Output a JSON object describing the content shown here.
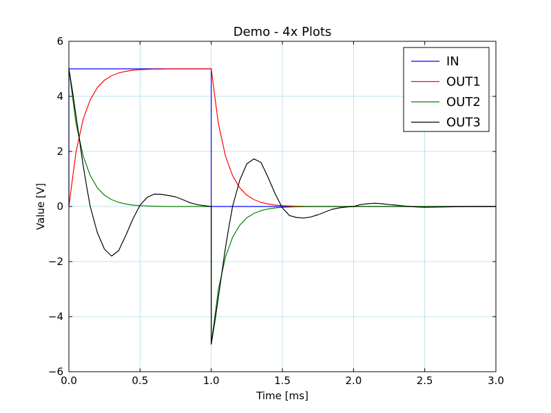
{
  "chart_data": {
    "type": "line",
    "title": "Demo - 4x Plots",
    "xlabel": "Time  [ms]",
    "ylabel": "Value [V]",
    "xlim": [
      0,
      3
    ],
    "ylim": [
      -6,
      6
    ],
    "xticks": [
      0,
      0.5,
      1,
      1.5,
      2,
      2.5,
      3
    ],
    "xtick_labels": [
      "0.0",
      "0.5",
      "1.0",
      "1.5",
      "2.0",
      "2.5",
      "3.0"
    ],
    "yticks": [
      -6,
      -4,
      -2,
      0,
      2,
      4,
      6
    ],
    "ytick_labels": [
      "−6",
      "−4",
      "−2",
      "0",
      "2",
      "4",
      "6"
    ],
    "grid": true,
    "legend_position": "top-right",
    "series": [
      {
        "name": "IN",
        "color": "#0000ff",
        "x": [
          0,
          0,
          1,
          1,
          3
        ],
        "y": [
          0,
          5,
          5,
          0,
          0
        ]
      },
      {
        "name": "OUT1",
        "color": "#ff0000",
        "x": [
          0,
          0.05,
          0.1,
          0.15,
          0.2,
          0.25,
          0.3,
          0.35,
          0.4,
          0.45,
          0.5,
          0.55,
          0.6,
          0.65,
          0.7,
          0.75,
          0.8,
          0.85,
          0.9,
          0.95,
          1.0,
          1.05,
          1.1,
          1.15,
          1.2,
          1.25,
          1.3,
          1.35,
          1.4,
          1.45,
          1.5,
          1.6,
          1.7,
          1.8,
          1.9,
          2.0,
          2.2,
          2.4,
          2.6,
          2.8,
          3.0
        ],
        "y": [
          0,
          1.98,
          3.16,
          3.88,
          4.32,
          4.59,
          4.75,
          4.85,
          4.91,
          4.95,
          4.97,
          4.98,
          4.99,
          4.99,
          5.0,
          5.0,
          5.0,
          5.0,
          5.0,
          5.0,
          5.0,
          3.02,
          1.84,
          1.12,
          0.68,
          0.41,
          0.25,
          0.15,
          0.09,
          0.05,
          0.03,
          0.01,
          0.0,
          0.0,
          0.0,
          0.0,
          0.0,
          0.0,
          0.0,
          0.0,
          0.0
        ]
      },
      {
        "name": "OUT2",
        "color": "#008000",
        "x": [
          0,
          0.05,
          0.1,
          0.15,
          0.2,
          0.25,
          0.3,
          0.35,
          0.4,
          0.45,
          0.5,
          0.55,
          0.6,
          0.7,
          0.8,
          0.9,
          1.0,
          1.0,
          1.05,
          1.1,
          1.15,
          1.2,
          1.25,
          1.3,
          1.35,
          1.4,
          1.45,
          1.5,
          1.55,
          1.6,
          1.7,
          1.8,
          1.9,
          2.0,
          2.2,
          2.4,
          2.6,
          2.8,
          3.0
        ],
        "y": [
          5.0,
          3.02,
          1.84,
          1.12,
          0.68,
          0.41,
          0.25,
          0.15,
          0.09,
          0.05,
          0.03,
          0.02,
          0.01,
          0.0,
          0.0,
          0.0,
          0.0,
          -5.0,
          -3.02,
          -1.84,
          -1.12,
          -0.68,
          -0.41,
          -0.25,
          -0.15,
          -0.09,
          -0.05,
          -0.03,
          -0.02,
          -0.01,
          0.0,
          0.0,
          0.0,
          0.0,
          0.0,
          0.0,
          0.0,
          0.0,
          0.0
        ]
      },
      {
        "name": "OUT3",
        "color": "#000000",
        "x": [
          0,
          0.025,
          0.05,
          0.075,
          0.1,
          0.125,
          0.15,
          0.2,
          0.25,
          0.3,
          0.35,
          0.4,
          0.45,
          0.5,
          0.55,
          0.6,
          0.65,
          0.7,
          0.75,
          0.8,
          0.85,
          0.9,
          0.95,
          1.0,
          1.0,
          1.025,
          1.05,
          1.075,
          1.1,
          1.125,
          1.15,
          1.2,
          1.25,
          1.3,
          1.35,
          1.4,
          1.45,
          1.5,
          1.55,
          1.6,
          1.65,
          1.7,
          1.75,
          1.8,
          1.85,
          1.9,
          1.95,
          2.0,
          2.05,
          2.1,
          2.15,
          2.2,
          2.25,
          2.3,
          2.35,
          2.4,
          2.45,
          2.5,
          2.6,
          2.7,
          2.8,
          2.9,
          3.0
        ],
        "y": [
          5.0,
          4.2,
          3.3,
          2.4,
          1.5,
          0.72,
          0.0,
          -0.95,
          -1.55,
          -1.8,
          -1.6,
          -1.05,
          -0.45,
          0.05,
          0.33,
          0.45,
          0.44,
          0.4,
          0.35,
          0.25,
          0.14,
          0.07,
          0.03,
          0.0,
          -5.0,
          -4.2,
          -3.3,
          -2.4,
          -1.5,
          -0.72,
          0.0,
          0.95,
          1.55,
          1.73,
          1.6,
          1.05,
          0.45,
          -0.05,
          -0.33,
          -0.4,
          -0.42,
          -0.38,
          -0.3,
          -0.2,
          -0.1,
          -0.05,
          -0.02,
          0.0,
          0.07,
          0.1,
          0.12,
          0.1,
          0.07,
          0.05,
          0.02,
          0.0,
          -0.02,
          -0.03,
          -0.02,
          -0.01,
          0.0,
          0.0,
          0.0
        ]
      }
    ]
  }
}
